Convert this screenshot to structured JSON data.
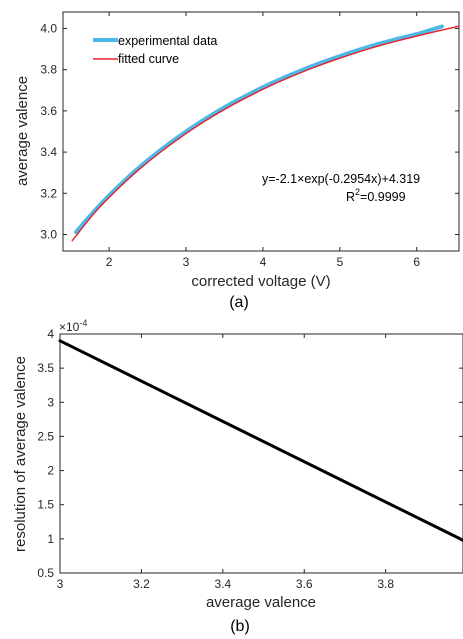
{
  "figure": {
    "panel_a_label": "(a)",
    "panel_b_label": "(b)"
  },
  "chart_data": [
    {
      "type": "line",
      "xlabel": "corrected voltage (V)",
      "ylabel": "average valence",
      "xlim": [
        1.4,
        6.55
      ],
      "ylim": [
        2.92,
        4.08
      ],
      "xticks": [
        2,
        3,
        4,
        5,
        6
      ],
      "yticks": [
        3.0,
        3.2,
        3.4,
        3.6,
        3.8,
        4.0
      ],
      "xtick_labels": [
        "2",
        "3",
        "4",
        "5",
        "6"
      ],
      "ytick_labels": [
        "3.0",
        "3.2",
        "3.4",
        "3.6",
        "3.8",
        "4.0"
      ],
      "grid": false,
      "legend_position": "top-left",
      "series": [
        {
          "name": "experimental data",
          "color": "#4DB8E8",
          "x": [
            1.57,
            1.8,
            2.0,
            2.2,
            2.4,
            2.7,
            3.0,
            3.3,
            3.6,
            4.0,
            4.3,
            4.7,
            5.0,
            5.4,
            5.7,
            6.0,
            6.33
          ],
          "y": [
            3.012,
            3.111,
            3.19,
            3.262,
            3.329,
            3.419,
            3.5,
            3.573,
            3.638,
            3.715,
            3.766,
            3.826,
            3.866,
            3.914,
            3.945,
            3.973,
            4.01
          ]
        },
        {
          "name": "fitted curve",
          "color": "#E8202A",
          "x": [
            1.52,
            1.8,
            2.0,
            2.2,
            2.4,
            2.7,
            3.0,
            3.3,
            3.6,
            4.0,
            4.3,
            4.7,
            5.0,
            5.4,
            5.7,
            6.0,
            6.3,
            6.55
          ],
          "y": [
            2.97,
            3.101,
            3.18,
            3.252,
            3.319,
            3.409,
            3.49,
            3.563,
            3.628,
            3.705,
            3.756,
            3.816,
            3.856,
            3.904,
            3.935,
            3.963,
            3.99,
            4.011
          ]
        }
      ],
      "annotations": {
        "equation": "y=-2.1×exp(-0.2954x)+4.319",
        "r2_prefix": "R",
        "r2_exponent": "2",
        "r2_value": "=0.9999"
      }
    },
    {
      "type": "line",
      "xlabel": "average valence",
      "ylabel": "resolution of average valence",
      "xlim": [
        3.0,
        3.99
      ],
      "ylim": [
        0.5,
        4.0
      ],
      "xticks": [
        3.0,
        3.2,
        3.4,
        3.6,
        3.8
      ],
      "yticks": [
        0.5,
        1.0,
        1.5,
        2.0,
        2.5,
        3.0,
        3.5,
        4.0
      ],
      "xtick_labels": [
        "3",
        "3.2",
        "3.4",
        "3.6",
        "3.8"
      ],
      "ytick_labels": [
        "0.5",
        "1",
        "1.5",
        "2",
        "2.5",
        "3",
        "3.5",
        "4"
      ],
      "y_multiplier_base": "×10",
      "y_multiplier_exponent": "-4",
      "grid": false,
      "series": [
        {
          "color": "#000000",
          "x": [
            3.0,
            3.99
          ],
          "y": [
            3.9,
            0.98
          ]
        }
      ]
    }
  ]
}
